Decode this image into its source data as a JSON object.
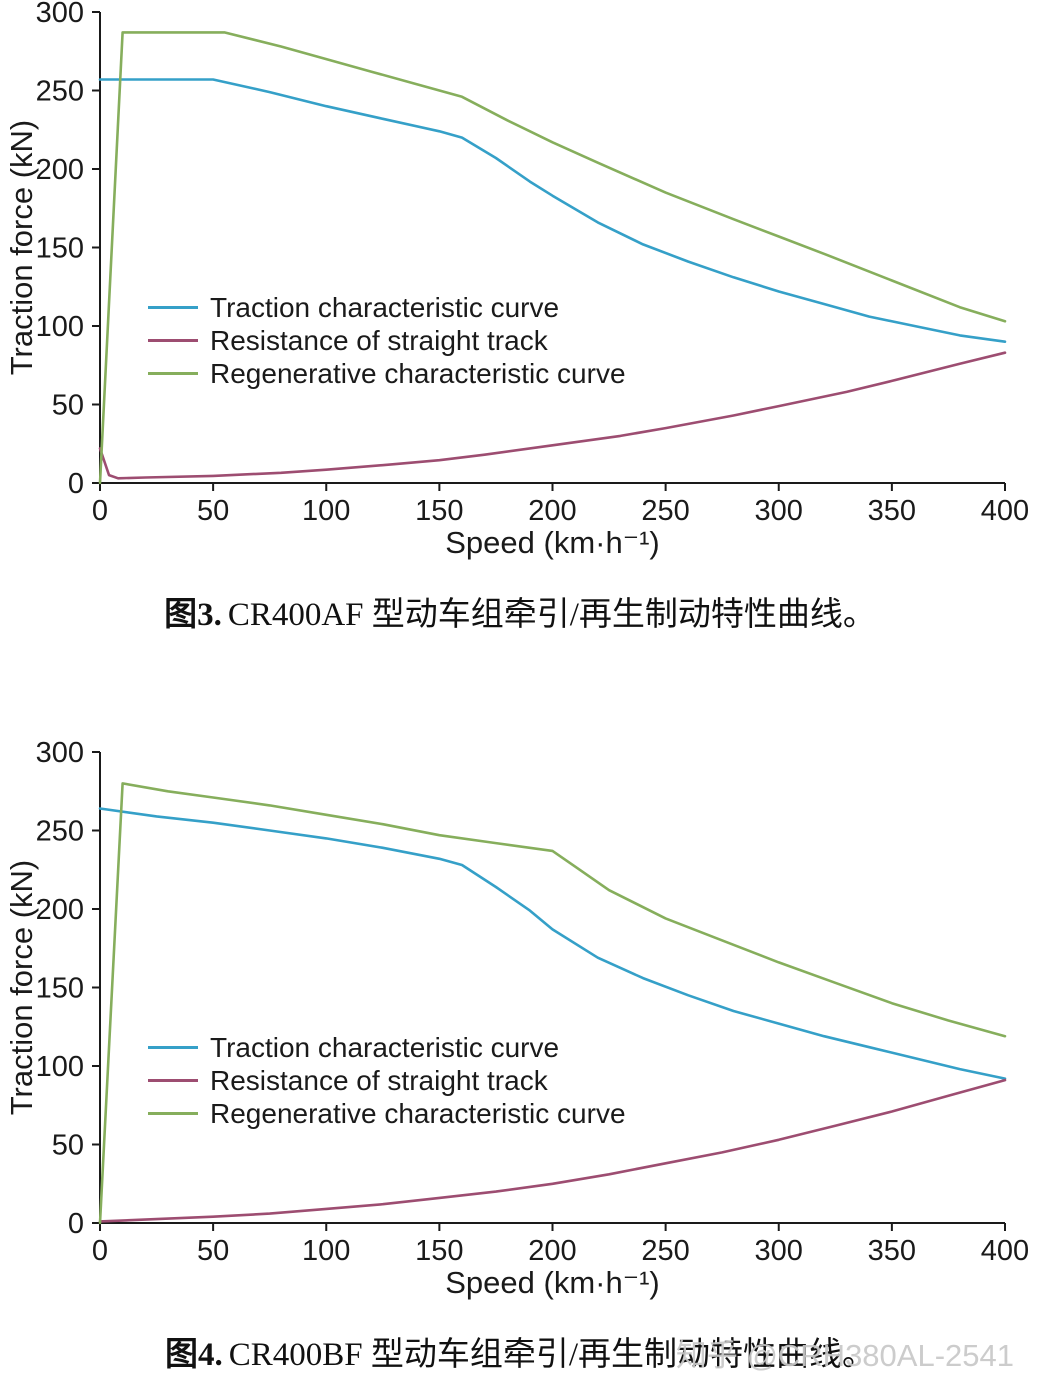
{
  "watermark": "知乎 @CRH380AL-2541",
  "chart_data": [
    {
      "type": "line",
      "caption_prefix": "图3.",
      "caption_text": "CR400AF 型动车组牵引/再生制动特性曲线。",
      "xlabel": "Speed (km·h⁻¹)",
      "ylabel": "Traction force (kN)",
      "xlim": [
        0,
        400
      ],
      "ylim": [
        0,
        300
      ],
      "xticks": [
        0,
        50,
        100,
        150,
        200,
        250,
        300,
        350,
        400
      ],
      "yticks": [
        0,
        50,
        100,
        150,
        200,
        250,
        300
      ],
      "grid": false,
      "legend_position": "inside-left",
      "series": [
        {
          "name": "Traction characteristic curve",
          "color": "#35a0c8",
          "points": [
            [
              0,
              257
            ],
            [
              50,
              257
            ],
            [
              75,
              249
            ],
            [
              100,
              240
            ],
            [
              125,
              232
            ],
            [
              150,
              224
            ],
            [
              160,
              220
            ],
            [
              175,
              207
            ],
            [
              190,
              192
            ],
            [
              200,
              183
            ],
            [
              220,
              166
            ],
            [
              240,
              152
            ],
            [
              260,
              141
            ],
            [
              280,
              131
            ],
            [
              300,
              122
            ],
            [
              320,
              114
            ],
            [
              340,
              106
            ],
            [
              360,
              100
            ],
            [
              380,
              94
            ],
            [
              400,
              90
            ]
          ]
        },
        {
          "name": "Resistance of straight track",
          "color": "#9d4d71",
          "points": [
            [
              0,
              22
            ],
            [
              4,
              5
            ],
            [
              8,
              3
            ],
            [
              20,
              3.5
            ],
            [
              50,
              4.5
            ],
            [
              80,
              6.5
            ],
            [
              100,
              8.5
            ],
            [
              130,
              12
            ],
            [
              150,
              14.5
            ],
            [
              170,
              18
            ],
            [
              200,
              24
            ],
            [
              230,
              30
            ],
            [
              250,
              35
            ],
            [
              280,
              43
            ],
            [
              300,
              49
            ],
            [
              330,
              58
            ],
            [
              350,
              65
            ],
            [
              380,
              76
            ],
            [
              400,
              83
            ]
          ]
        },
        {
          "name": "Regenerative characteristic curve",
          "color": "#86ae5c",
          "points": [
            [
              0,
              0
            ],
            [
              10,
              287
            ],
            [
              55,
              287
            ],
            [
              80,
              278
            ],
            [
              100,
              270
            ],
            [
              120,
              262
            ],
            [
              140,
              254
            ],
            [
              160,
              246
            ],
            [
              180,
              231
            ],
            [
              200,
              217
            ],
            [
              220,
              204
            ],
            [
              250,
              185
            ],
            [
              280,
              168
            ],
            [
              300,
              157
            ],
            [
              320,
              146
            ],
            [
              350,
              129
            ],
            [
              380,
              112
            ],
            [
              400,
              103
            ]
          ]
        }
      ]
    },
    {
      "type": "line",
      "caption_prefix": "图4.",
      "caption_text": "CR400BF 型动车组牵引/再生制动特性曲线。",
      "xlabel": "Speed (km·h⁻¹)",
      "ylabel": "Traction force (kN)",
      "xlim": [
        0,
        400
      ],
      "ylim": [
        0,
        300
      ],
      "xticks": [
        0,
        50,
        100,
        150,
        200,
        250,
        300,
        350,
        400
      ],
      "yticks": [
        0,
        50,
        100,
        150,
        200,
        250,
        300
      ],
      "grid": false,
      "legend_position": "inside-left",
      "series": [
        {
          "name": "Traction characteristic curve",
          "color": "#35a0c8",
          "points": [
            [
              0,
              264
            ],
            [
              25,
              259
            ],
            [
              50,
              255
            ],
            [
              75,
              250
            ],
            [
              100,
              245
            ],
            [
              125,
              239
            ],
            [
              150,
              232
            ],
            [
              160,
              228
            ],
            [
              175,
              214
            ],
            [
              190,
              199
            ],
            [
              200,
              187
            ],
            [
              220,
              169
            ],
            [
              240,
              156
            ],
            [
              260,
              145
            ],
            [
              280,
              135
            ],
            [
              300,
              127
            ],
            [
              320,
              119
            ],
            [
              340,
              112
            ],
            [
              360,
              105
            ],
            [
              380,
              98
            ],
            [
              400,
              92
            ]
          ]
        },
        {
          "name": "Resistance of straight track",
          "color": "#9d4d71",
          "points": [
            [
              0,
              1
            ],
            [
              25,
              2.5
            ],
            [
              50,
              4
            ],
            [
              75,
              6
            ],
            [
              100,
              9
            ],
            [
              125,
              12
            ],
            [
              150,
              16
            ],
            [
              175,
              20
            ],
            [
              200,
              25
            ],
            [
              225,
              31
            ],
            [
              250,
              38
            ],
            [
              275,
              45
            ],
            [
              300,
              53
            ],
            [
              325,
              62
            ],
            [
              350,
              71
            ],
            [
              375,
              81
            ],
            [
              400,
              91
            ]
          ]
        },
        {
          "name": "Regenerative characteristic curve",
          "color": "#86ae5c",
          "points": [
            [
              0,
              0
            ],
            [
              10,
              280
            ],
            [
              30,
              275
            ],
            [
              50,
              271
            ],
            [
              75,
              266
            ],
            [
              100,
              260
            ],
            [
              125,
              254
            ],
            [
              150,
              247
            ],
            [
              175,
              242
            ],
            [
              200,
              237
            ],
            [
              210,
              227
            ],
            [
              225,
              212
            ],
            [
              250,
              194
            ],
            [
              275,
              180
            ],
            [
              300,
              166
            ],
            [
              325,
              153
            ],
            [
              350,
              140
            ],
            [
              375,
              129
            ],
            [
              400,
              119
            ]
          ]
        }
      ]
    }
  ]
}
